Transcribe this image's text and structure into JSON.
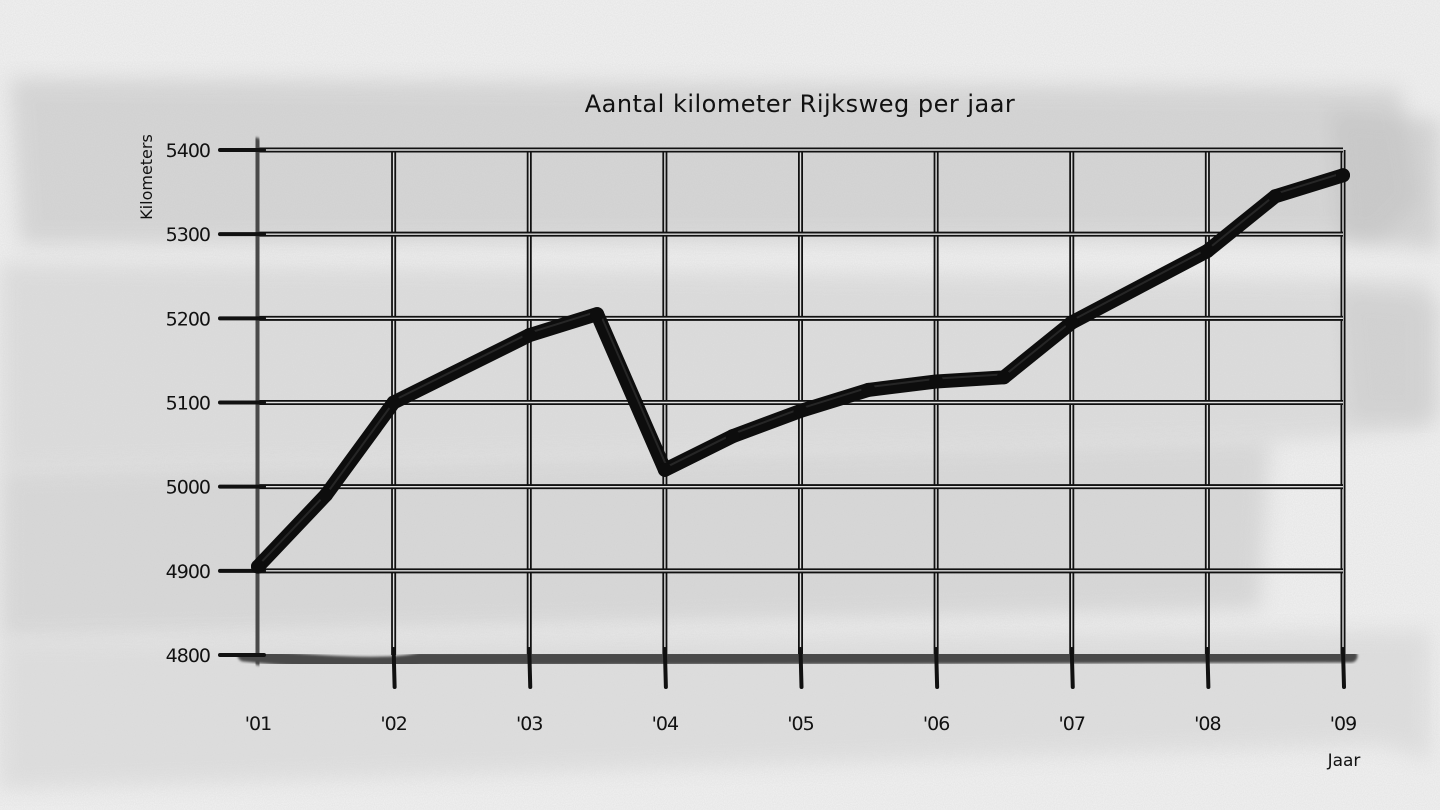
{
  "chart_data": {
    "type": "line",
    "title": "Aantal kilometer Rijksweg per jaar",
    "xlabel": "Jaar",
    "ylabel": "Kilometers",
    "categories": [
      "'01",
      "'02",
      "'03",
      "'04",
      "'05",
      "'06",
      "'07",
      "'08",
      "'09"
    ],
    "ylim": [
      4800,
      5400
    ],
    "yticks": [
      4800,
      4900,
      5000,
      5100,
      5200,
      5300,
      5400
    ],
    "series": [
      {
        "points": [
          {
            "x": 1.0,
            "y": 4905
          },
          {
            "x": 1.5,
            "y": 4990
          },
          {
            "x": 2.0,
            "y": 5100
          },
          {
            "x": 3.0,
            "y": 5180
          },
          {
            "x": 3.5,
            "y": 5205
          },
          {
            "x": 4.0,
            "y": 5020
          },
          {
            "x": 4.5,
            "y": 5060
          },
          {
            "x": 5.0,
            "y": 5090
          },
          {
            "x": 5.5,
            "y": 5115
          },
          {
            "x": 6.0,
            "y": 5125
          },
          {
            "x": 6.5,
            "y": 5130
          },
          {
            "x": 7.0,
            "y": 5195
          },
          {
            "x": 8.0,
            "y": 5280
          },
          {
            "x": 8.5,
            "y": 5345
          },
          {
            "x": 9.0,
            "y": 5370
          }
        ]
      }
    ],
    "grid": true,
    "style": "hand-drawn black ink on gray watercolor wash"
  }
}
